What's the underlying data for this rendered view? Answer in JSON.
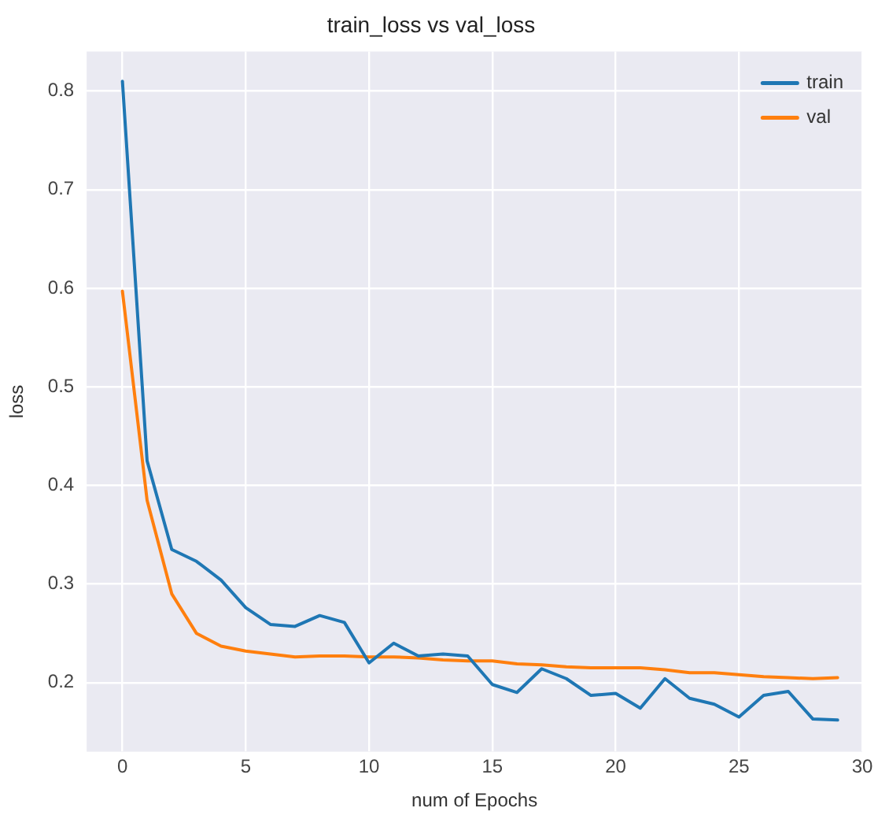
{
  "chart_data": {
    "type": "line",
    "title": "train_loss vs val_loss",
    "xlabel": "num of Epochs",
    "ylabel": "loss",
    "x": [
      0,
      1,
      2,
      3,
      4,
      5,
      6,
      7,
      8,
      9,
      10,
      11,
      12,
      13,
      14,
      15,
      16,
      17,
      18,
      19,
      20,
      21,
      22,
      23,
      24,
      25,
      26,
      27,
      28,
      29
    ],
    "series": [
      {
        "name": "train",
        "color": "#1f77b4",
        "values": [
          0.81,
          0.425,
          0.335,
          0.323,
          0.304,
          0.276,
          0.259,
          0.257,
          0.268,
          0.261,
          0.22,
          0.24,
          0.227,
          0.229,
          0.227,
          0.198,
          0.19,
          0.214,
          0.204,
          0.187,
          0.189,
          0.174,
          0.204,
          0.184,
          0.178,
          0.165,
          0.187,
          0.191,
          0.163,
          0.162
        ]
      },
      {
        "name": "val",
        "color": "#ff7f0e",
        "values": [
          0.597,
          0.385,
          0.29,
          0.25,
          0.237,
          0.232,
          0.229,
          0.226,
          0.227,
          0.227,
          0.226,
          0.226,
          0.225,
          0.223,
          0.222,
          0.222,
          0.219,
          0.218,
          0.216,
          0.215,
          0.215,
          0.215,
          0.213,
          0.21,
          0.21,
          0.208,
          0.206,
          0.205,
          0.204,
          0.205
        ]
      }
    ],
    "xlim": [
      -1.45,
      30
    ],
    "xticks": [
      0,
      5,
      10,
      15,
      20,
      25,
      30
    ],
    "ylim": [
      0.13,
      0.84
    ],
    "yticks": [
      0.2,
      0.3,
      0.4,
      0.5,
      0.6,
      0.7,
      0.8
    ],
    "grid": true,
    "legend": "top right",
    "line_style": "solid",
    "marker": "none"
  }
}
